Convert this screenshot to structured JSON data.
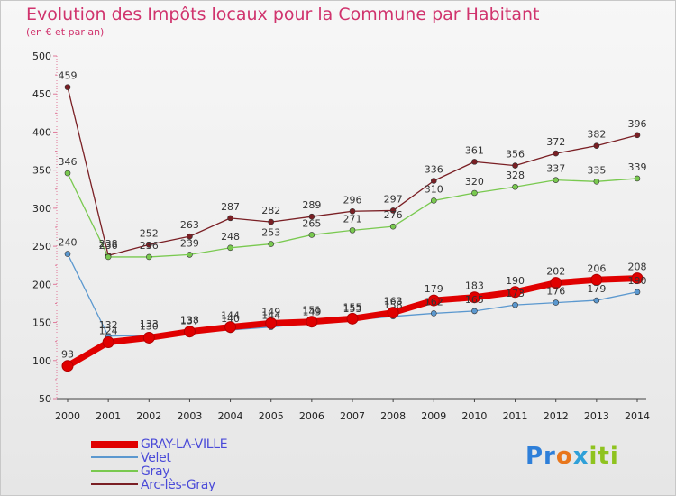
{
  "chart_data": {
    "type": "line",
    "title": "Evolution des Impôts locaux pour la Commune par Habitant",
    "subtitle": "(en € et par an)",
    "xlabel": "",
    "ylabel": "",
    "ylim": [
      50,
      500
    ],
    "yticks": [
      "50",
      "100",
      "150",
      "200",
      "250",
      "300",
      "350",
      "400",
      "450",
      "500"
    ],
    "categories": [
      "2000",
      "2001",
      "2002",
      "2003",
      "2004",
      "2005",
      "2006",
      "2007",
      "2008",
      "2009",
      "2010",
      "2011",
      "2012",
      "2013",
      "2014"
    ],
    "grid": false,
    "legend_position": "bottom-left",
    "series": [
      {
        "name": "Arc-lès-Gray",
        "color": "#7a1f24",
        "values": [
          459,
          238,
          252,
          263,
          287,
          282,
          289,
          296,
          297,
          336,
          361,
          356,
          372,
          382,
          396
        ],
        "labels": [
          "459",
          "238",
          "252",
          "263",
          "287",
          "282",
          "289",
          "296",
          "297",
          "336",
          "361",
          "356",
          "372",
          "382",
          "396"
        ]
      },
      {
        "name": "Gray",
        "color": "#79c94f",
        "values": [
          346,
          236,
          236,
          239,
          248,
          253,
          265,
          271,
          276,
          310,
          320,
          328,
          337,
          335,
          339
        ],
        "labels": [
          "346",
          "236",
          "236",
          "239",
          "248",
          "253",
          "265",
          "271",
          "276",
          "310",
          "320",
          "328",
          "337",
          "335",
          "339"
        ]
      },
      {
        "name": "Velet",
        "color": "#5b98cf",
        "values": [
          240,
          132,
          133,
          137,
          140,
          144,
          149,
          153,
          158,
          162,
          165,
          173,
          176,
          179,
          190
        ],
        "labels": [
          "240",
          "132",
          "133",
          "137",
          "140",
          "144",
          "149",
          "153",
          "158",
          "162",
          "165",
          "173",
          "176",
          "179",
          "190"
        ]
      },
      {
        "name": "GRAY-LA-VILLE",
        "color": "#e00000",
        "values": [
          93,
          124,
          130,
          138,
          144,
          149,
          151,
          155,
          163,
          179,
          183,
          190,
          202,
          206,
          208
        ],
        "labels": [
          "93",
          "124",
          "130",
          "138",
          "144",
          "149",
          "151",
          "155",
          "163",
          "179",
          "183",
          "190",
          "202",
          "206",
          "208"
        ]
      }
    ]
  },
  "legend": {
    "items": [
      "GRAY-LA-VILLE",
      "Velet",
      "Gray",
      "Arc-lès-Gray"
    ]
  },
  "logo": {
    "p1": "Pr",
    "p2": "o",
    "p3": "x",
    "p4": "iti"
  }
}
